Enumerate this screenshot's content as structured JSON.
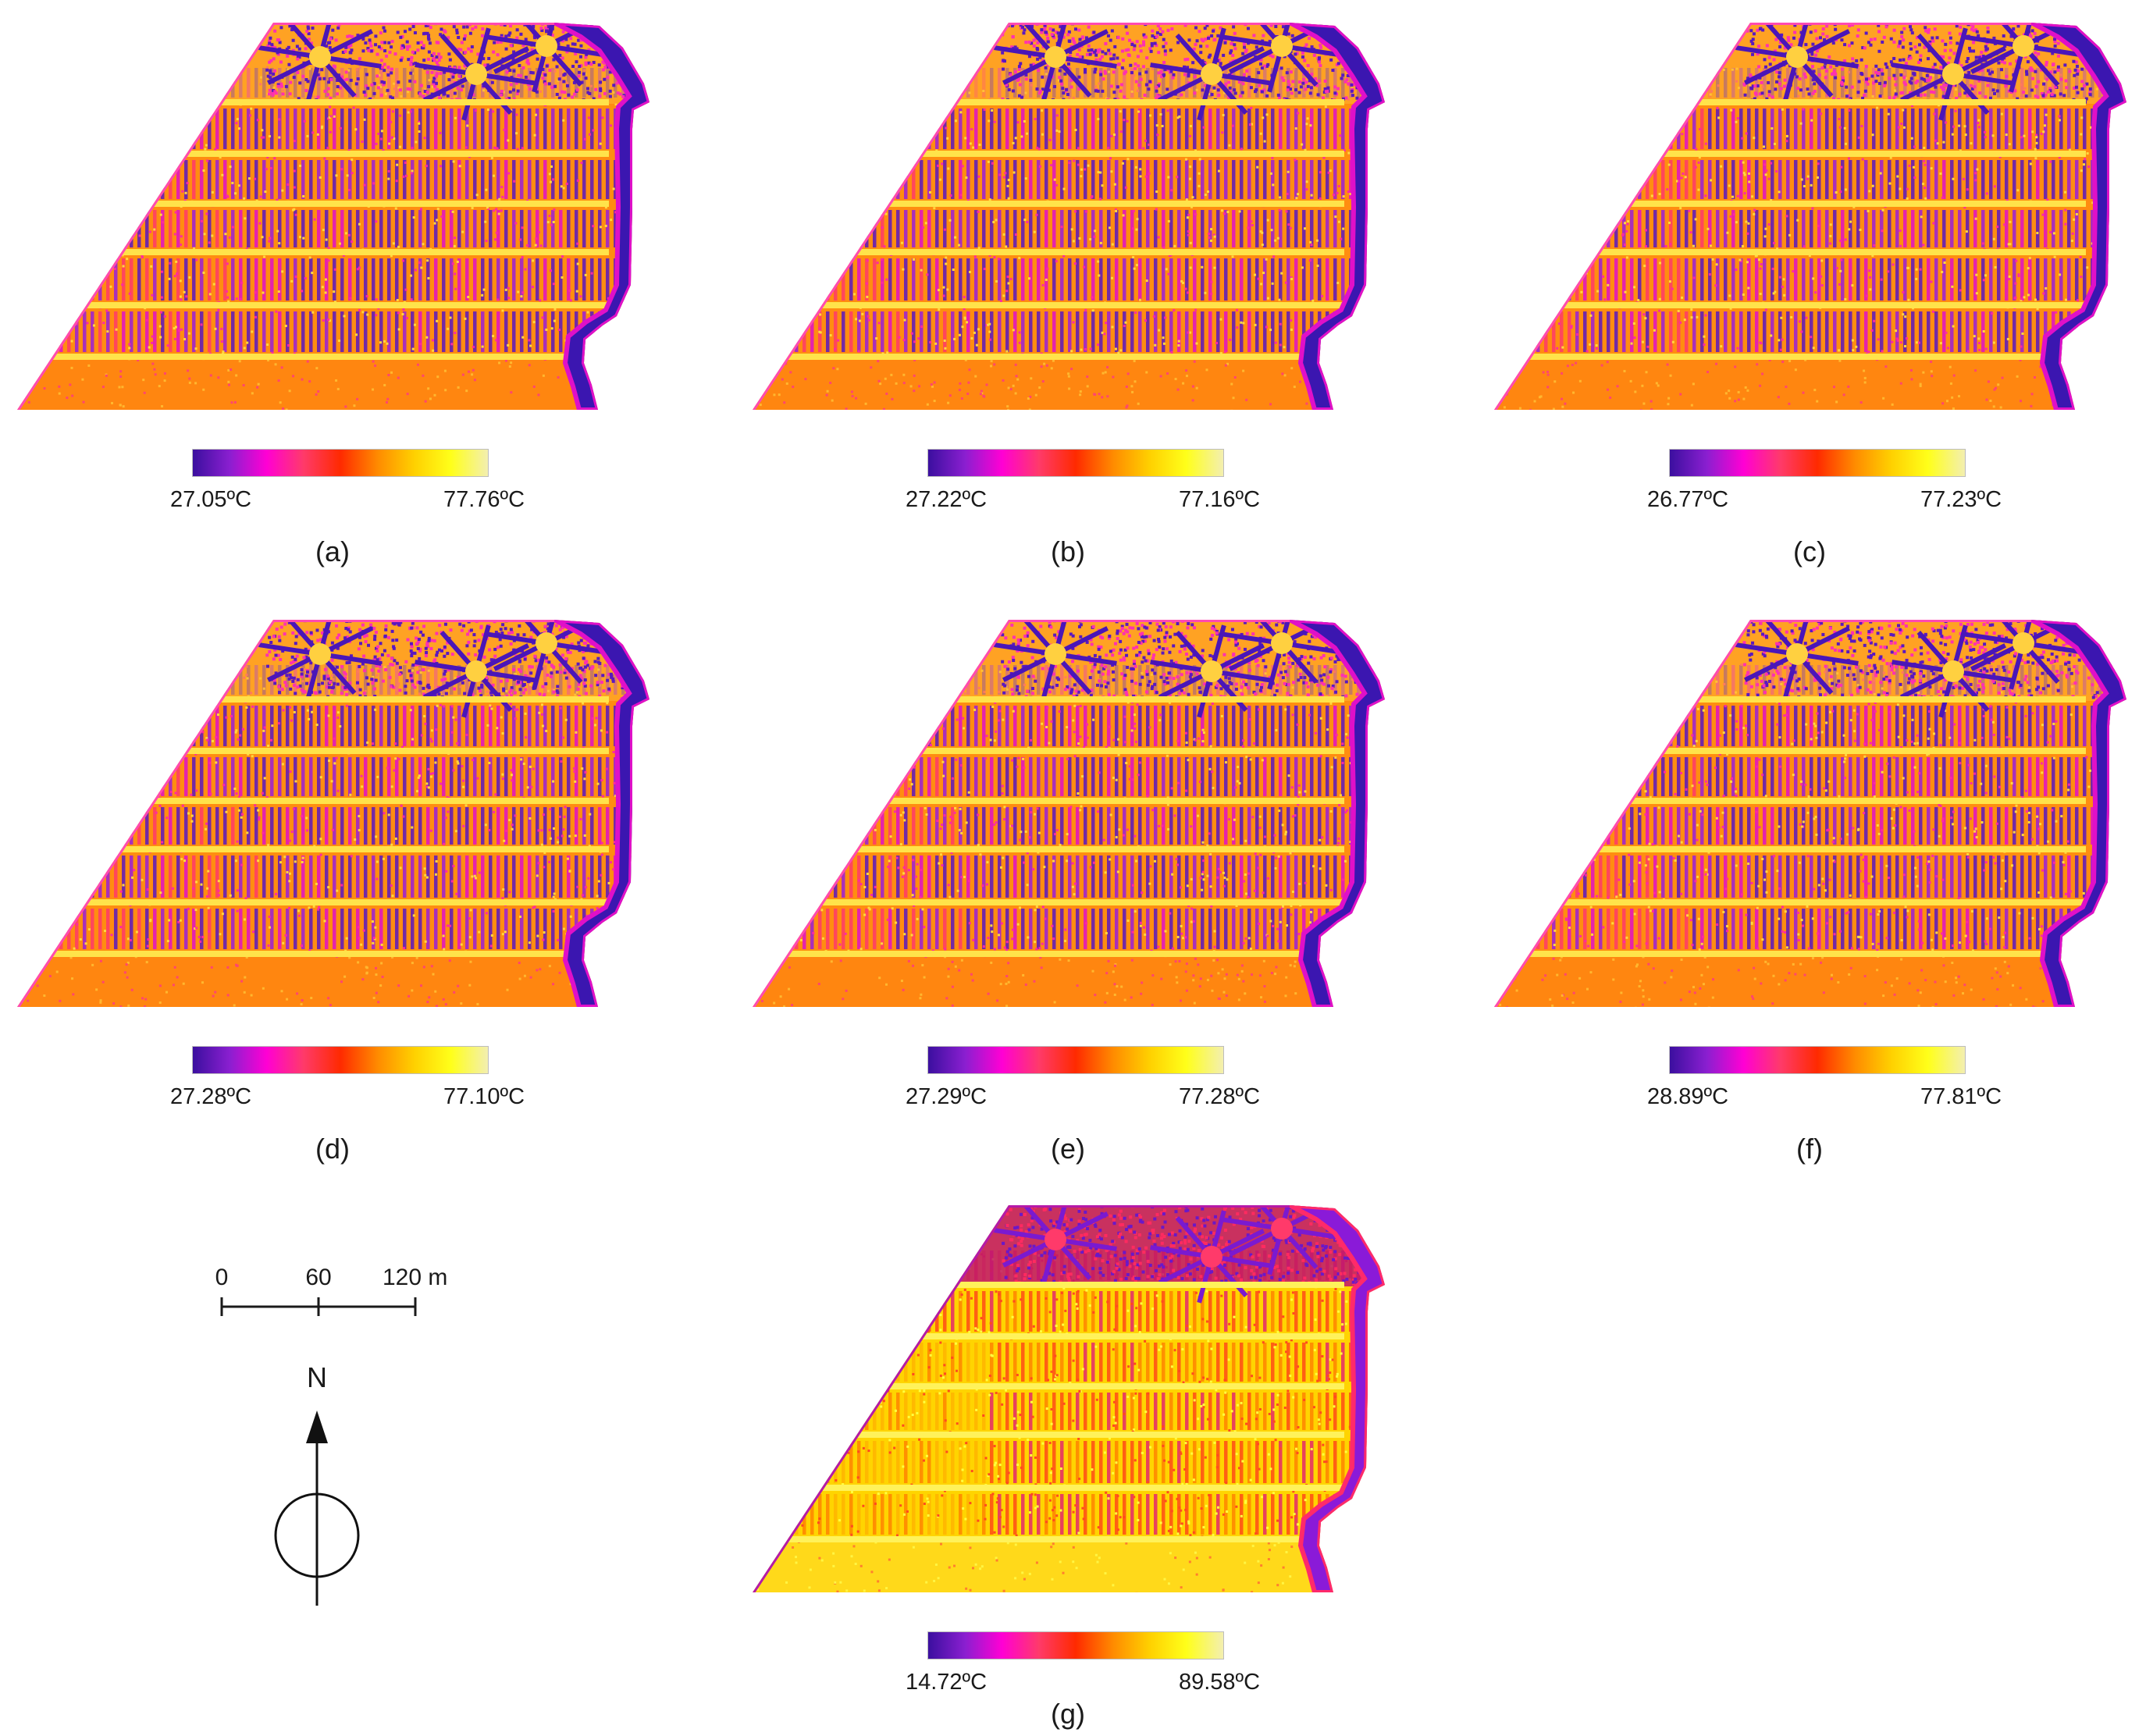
{
  "panels": [
    {
      "label": "(a)",
      "min_label": "27.05ºC",
      "max_label": "77.76ºC",
      "style": "normal"
    },
    {
      "label": "(b)",
      "min_label": "27.22ºC",
      "max_label": "77.16ºC",
      "style": "normal"
    },
    {
      "label": "(c)",
      "min_label": "26.77ºC",
      "max_label": "77.23ºC",
      "style": "normal"
    },
    {
      "label": "(d)",
      "min_label": "27.28ºC",
      "max_label": "77.10ºC",
      "style": "normal"
    },
    {
      "label": "(e)",
      "min_label": "27.29ºC",
      "max_label": "77.28ºC",
      "style": "normal"
    },
    {
      "label": "(f)",
      "min_label": "28.89ºC",
      "max_label": "77.81ºC",
      "style": "normal"
    },
    {
      "label": "(g)",
      "min_label": "14.72ºC",
      "max_label": "89.58ºC",
      "style": "hot"
    }
  ],
  "colormap": [
    "#3b0f9f",
    "#8a1fd0",
    "#ff00d4",
    "#ff3a6a",
    "#ff2a00",
    "#ff8a00",
    "#ffd000",
    "#ffff1a",
    "#f3efb0"
  ],
  "scale_bar": {
    "ticks": [
      "0",
      "60",
      "120 m"
    ]
  },
  "north_arrow": {
    "letter": "N"
  }
}
